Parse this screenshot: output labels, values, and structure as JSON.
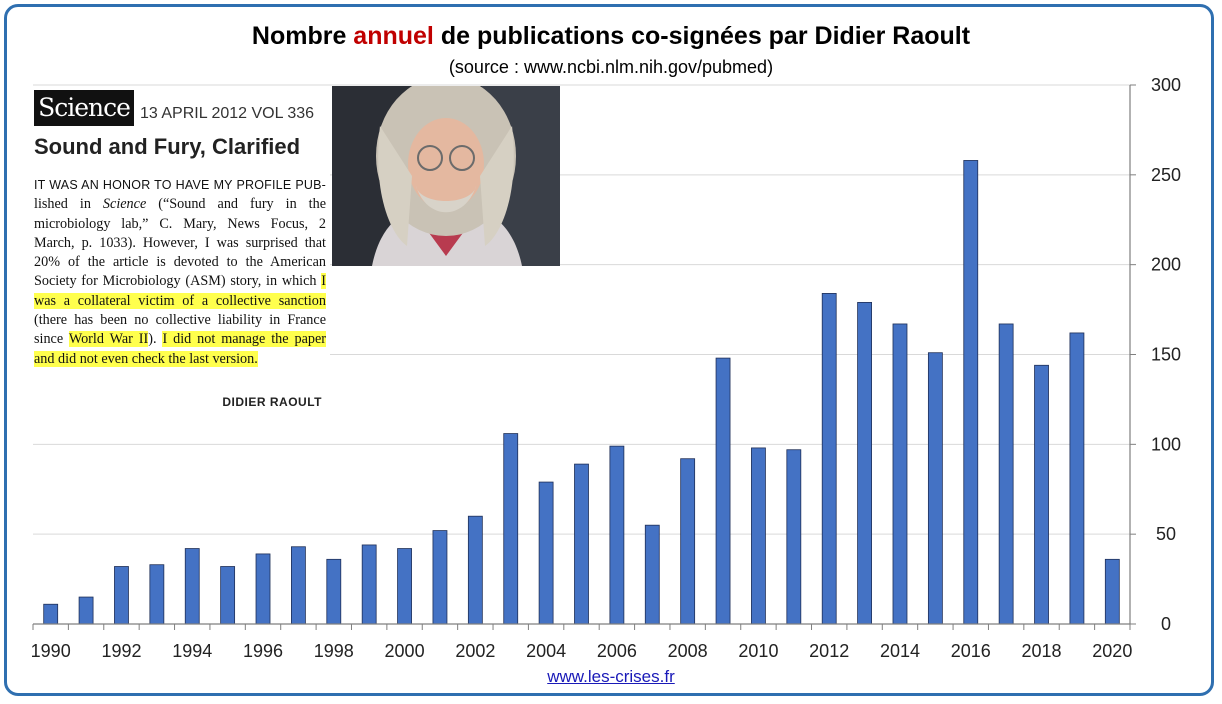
{
  "header": {
    "title_pre": "Nombre ",
    "title_accent": "annuel",
    "title_post": " de publications co-signées par Didier Raoult",
    "subtitle": "(source : www.ncbi.nlm.nih.gov/pubmed)",
    "accent_color": "#c00000"
  },
  "footer": {
    "link": "www.les-crises.fr"
  },
  "excerpt": {
    "journal": "Science",
    "issue": "13 APRIL 2012    VOL 336",
    "headline": "Sound and Fury, Clarified",
    "text_caps": "IT WAS AN HONOR TO HAVE MY PROFILE PUB-",
    "text_1": "lished in ",
    "text_italic": "Science",
    "text_2": " (“Sound and fury in the microbiology lab,” C. Mary, News Focus, 2 March, p. 1033). However, I was surprised that 20% of the article is devoted to the American Society for Microbiology (ASM) story, in which ",
    "hl_1": "I was a collateral victim of a collective sanction",
    "text_3": " (there has been no collective liability in France since ",
    "hl_2": "World War II",
    "text_4": "). ",
    "hl_3": "I did not manage the paper and did not even check the last version.",
    "signature": "DIDIER RAOULT",
    "highlight_color": "#ffff4d"
  },
  "photo": {
    "icon": "portrait-photo"
  },
  "chart_data": {
    "type": "bar",
    "categories": [
      "1990",
      "1991",
      "1992",
      "1993",
      "1994",
      "1995",
      "1996",
      "1997",
      "1998",
      "1999",
      "2000",
      "2001",
      "2002",
      "2003",
      "2004",
      "2005",
      "2006",
      "2007",
      "2008",
      "2009",
      "2010",
      "2011",
      "2012",
      "2013",
      "2014",
      "2015",
      "2016",
      "2017",
      "2018",
      "2019",
      "2020"
    ],
    "values": [
      11,
      15,
      32,
      33,
      42,
      32,
      39,
      43,
      36,
      44,
      42,
      52,
      60,
      106,
      79,
      89,
      99,
      55,
      92,
      148,
      98,
      97,
      184,
      179,
      167,
      151,
      258,
      167,
      144,
      162,
      36
    ],
    "x_tick_labels": [
      "1990",
      "1992",
      "1994",
      "1996",
      "1998",
      "2000",
      "2002",
      "2004",
      "2006",
      "2008",
      "2010",
      "2012",
      "2014",
      "2016",
      "2018",
      "2020"
    ],
    "y_ticks": [
      0,
      50,
      100,
      150,
      200,
      250,
      300
    ],
    "ylim": [
      0,
      300
    ],
    "y_axis_side": "right",
    "grid": true,
    "bar_color": "#4472c4"
  }
}
